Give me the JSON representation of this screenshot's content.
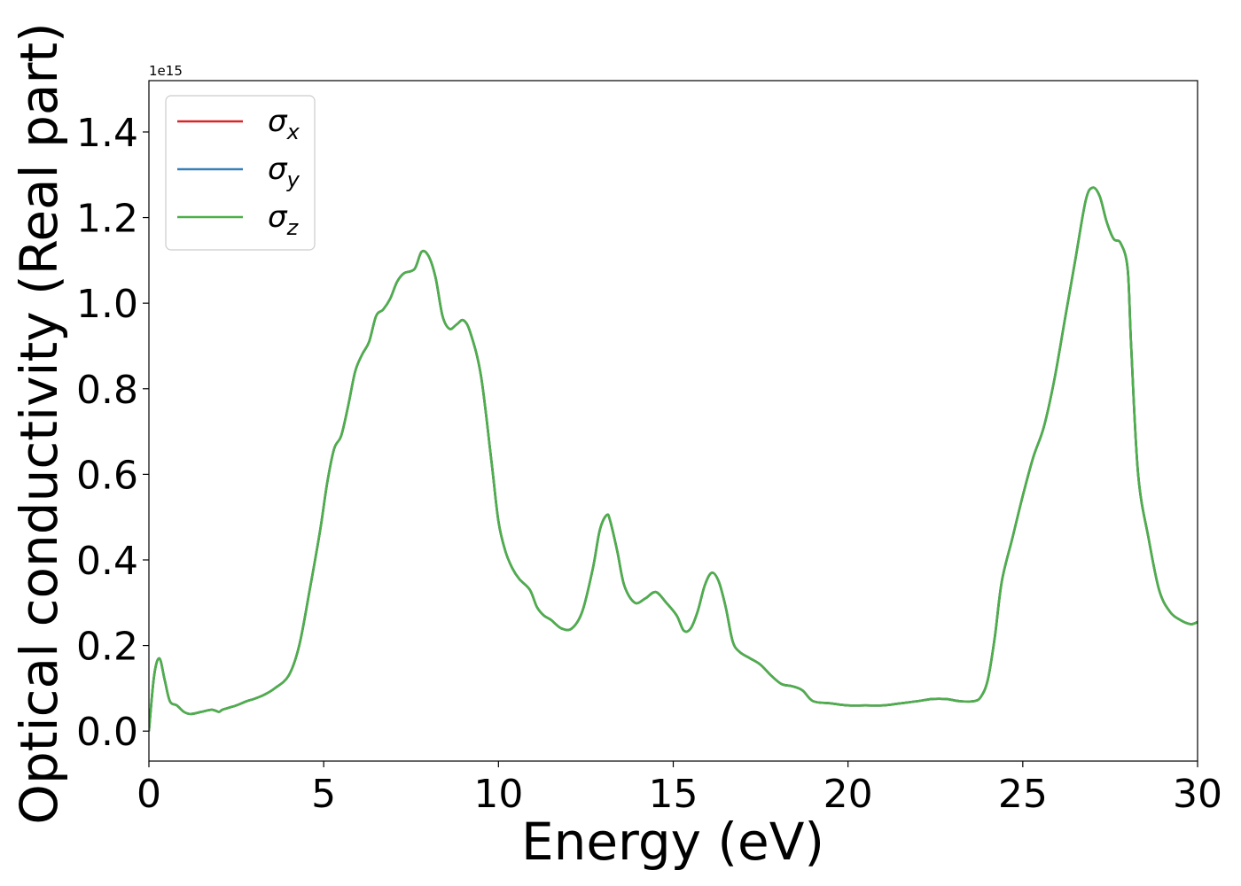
{
  "chart_data": {
    "type": "line",
    "xlabel": "Energy (eV)",
    "ylabel": "Optical conductivity (Real part)",
    "y_offset_label": "1e15",
    "y_scale": 1000000000000000.0,
    "xlim": [
      0,
      30
    ],
    "ylim": [
      -0.07,
      1.52
    ],
    "x_ticks": [
      0,
      5,
      10,
      15,
      20,
      25,
      30
    ],
    "x_tick_labels": [
      "0",
      "5",
      "10",
      "15",
      "20",
      "25",
      "30"
    ],
    "y_ticks": [
      0.0,
      0.2,
      0.4,
      0.6,
      0.8,
      1.0,
      1.2,
      1.4
    ],
    "y_tick_labels": [
      "0.0",
      "0.2",
      "0.4",
      "0.6",
      "0.8",
      "1.0",
      "1.2",
      "1.4"
    ],
    "grid": false,
    "legend_position": "upper-left",
    "series": [
      {
        "name": "σx",
        "sym": "σ",
        "sub": "x",
        "color": "#d62728"
      },
      {
        "name": "σy",
        "sym": "σ",
        "sub": "y",
        "color": "#377eb8"
      },
      {
        "name": "σz",
        "sym": "σ",
        "sub": "z",
        "color": "#4daf4a"
      }
    ],
    "x": [
      0,
      0.15,
      0.3,
      0.45,
      0.6,
      0.8,
      1.0,
      1.2,
      1.5,
      1.8,
      2.0,
      2.1,
      2.3,
      2.5,
      2.8,
      3.0,
      3.3,
      3.6,
      4.0,
      4.3,
      4.6,
      4.9,
      5.1,
      5.3,
      5.5,
      5.7,
      5.9,
      6.1,
      6.3,
      6.5,
      6.7,
      6.9,
      7.1,
      7.3,
      7.6,
      7.8,
      8.0,
      8.2,
      8.4,
      8.6,
      8.8,
      9.0,
      9.2,
      9.5,
      9.8,
      10.0,
      10.2,
      10.4,
      10.6,
      10.9,
      11.1,
      11.3,
      11.5,
      11.8,
      12.1,
      12.4,
      12.7,
      12.9,
      13.1,
      13.2,
      13.4,
      13.6,
      13.9,
      14.2,
      14.5,
      14.8,
      15.1,
      15.3,
      15.5,
      15.7,
      15.9,
      16.1,
      16.3,
      16.5,
      16.7,
      16.9,
      17.2,
      17.5,
      17.8,
      18.1,
      18.4,
      18.7,
      19.0,
      19.5,
      20.0,
      20.5,
      21.0,
      21.5,
      22.0,
      22.4,
      22.8,
      23.2,
      23.6,
      23.8,
      24.0,
      24.2,
      24.4,
      24.7,
      25.0,
      25.3,
      25.6,
      25.9,
      26.2,
      26.5,
      26.8,
      27.0,
      27.2,
      27.4,
      27.6,
      27.8,
      28.0,
      28.1,
      28.3,
      28.6,
      28.9,
      29.2,
      29.5,
      29.8,
      30.0
    ],
    "y": [
      0.0,
      0.13,
      0.17,
      0.12,
      0.07,
      0.06,
      0.045,
      0.04,
      0.045,
      0.05,
      0.045,
      0.05,
      0.055,
      0.06,
      0.07,
      0.075,
      0.085,
      0.1,
      0.13,
      0.2,
      0.33,
      0.47,
      0.58,
      0.66,
      0.69,
      0.76,
      0.84,
      0.88,
      0.91,
      0.97,
      0.985,
      1.01,
      1.05,
      1.07,
      1.08,
      1.12,
      1.11,
      1.06,
      0.97,
      0.94,
      0.95,
      0.96,
      0.93,
      0.83,
      0.63,
      0.49,
      0.42,
      0.38,
      0.355,
      0.33,
      0.29,
      0.27,
      0.26,
      0.24,
      0.24,
      0.28,
      0.38,
      0.47,
      0.505,
      0.49,
      0.42,
      0.34,
      0.3,
      0.31,
      0.325,
      0.3,
      0.27,
      0.235,
      0.24,
      0.28,
      0.34,
      0.37,
      0.35,
      0.29,
      0.21,
      0.185,
      0.17,
      0.155,
      0.13,
      0.11,
      0.105,
      0.095,
      0.07,
      0.065,
      0.06,
      0.06,
      0.06,
      0.065,
      0.07,
      0.075,
      0.075,
      0.07,
      0.07,
      0.08,
      0.12,
      0.22,
      0.35,
      0.45,
      0.55,
      0.64,
      0.71,
      0.82,
      0.96,
      1.1,
      1.24,
      1.27,
      1.25,
      1.19,
      1.15,
      1.14,
      1.08,
      0.9,
      0.6,
      0.45,
      0.33,
      0.28,
      0.26,
      0.25,
      0.255
    ]
  }
}
